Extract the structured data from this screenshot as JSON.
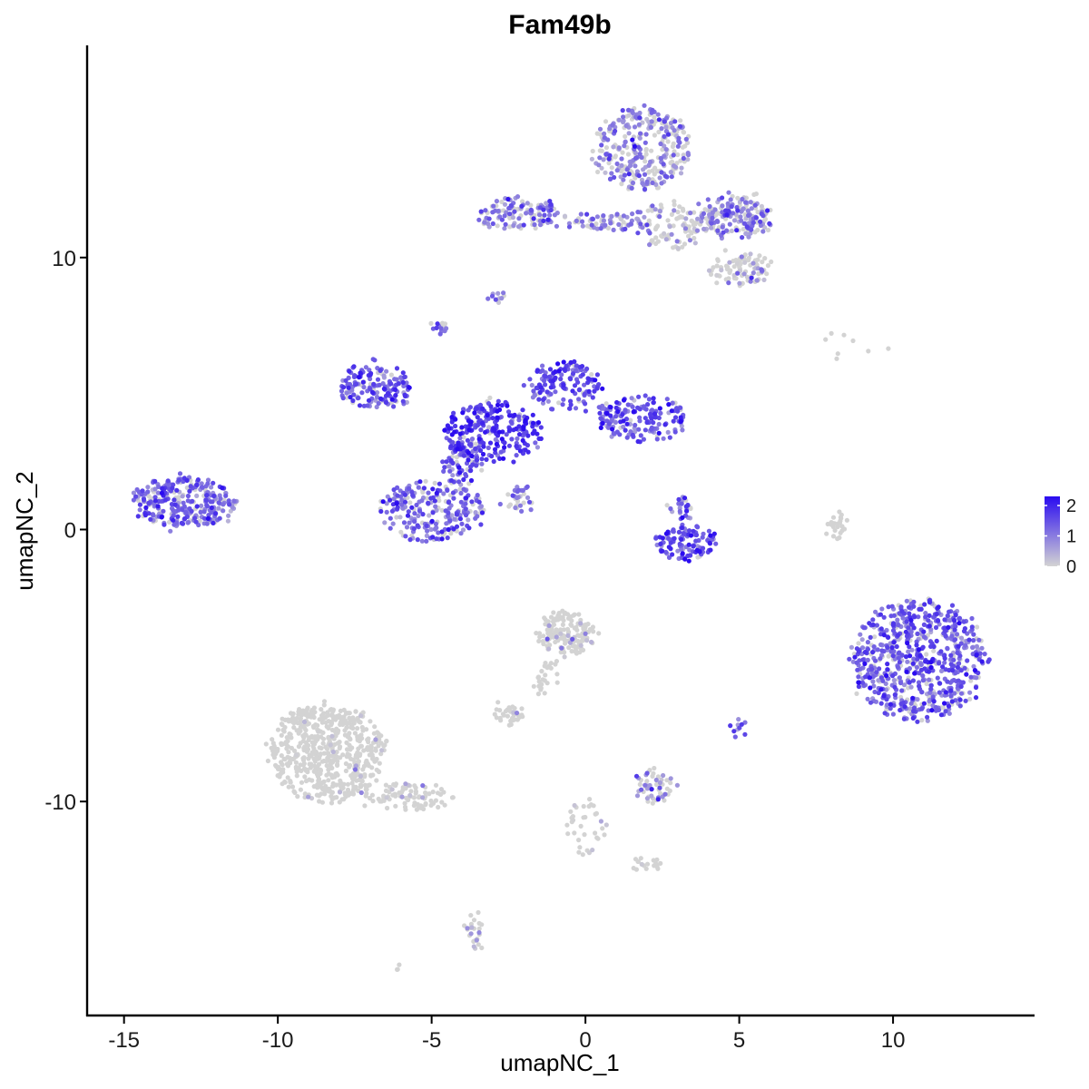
{
  "chart_data": {
    "type": "scatter",
    "title": "Fam49b",
    "xlabel": "umapNC_1",
    "ylabel": "umapNC_2",
    "xlim": [
      -16.2,
      14.6
    ],
    "ylim": [
      -17.9,
      17.8
    ],
    "x_ticks": [
      {
        "value": -15,
        "label": "-15"
      },
      {
        "value": -10,
        "label": "-10"
      },
      {
        "value": -5,
        "label": "-5"
      },
      {
        "value": 0,
        "label": "0"
      },
      {
        "value": 5,
        "label": "5"
      },
      {
        "value": 10,
        "label": "10"
      }
    ],
    "y_ticks": [
      {
        "value": 10,
        "label": "10"
      },
      {
        "value": 0,
        "label": "0"
      },
      {
        "value": -10,
        "label": "-10"
      }
    ],
    "grid": false,
    "legend": {
      "position": "right",
      "type": "colorbar",
      "min": 0,
      "max": 2.3,
      "low_color": "#d3d3d3",
      "high_color": "#2a0bf0",
      "ticks": [
        {
          "value": 0,
          "label": "0"
        },
        {
          "value": 1,
          "label": "1"
        },
        {
          "value": 2,
          "label": "2"
        }
      ]
    },
    "clusters": [
      {
        "name": "top-right upper lobe",
        "cx": 1.8,
        "cy": 14.0,
        "rx": 1.6,
        "ry": 1.5,
        "n": 320,
        "mean_expr": 0.9
      },
      {
        "name": "top-right right lobe",
        "cx": 5.0,
        "cy": 11.5,
        "rx": 1.1,
        "ry": 0.8,
        "n": 160,
        "mean_expr": 1.0
      },
      {
        "name": "top-right lower tail",
        "cx": 5.0,
        "cy": 9.6,
        "rx": 1.0,
        "ry": 0.6,
        "n": 90,
        "mean_expr": 0.5
      },
      {
        "name": "top bridge left",
        "cx": -2.2,
        "cy": 11.6,
        "rx": 1.3,
        "ry": 0.6,
        "n": 120,
        "mean_expr": 1.1
      },
      {
        "name": "top bridge middle",
        "cx": 0.7,
        "cy": 11.3,
        "rx": 1.6,
        "ry": 0.35,
        "n": 70,
        "mean_expr": 0.9
      },
      {
        "name": "top bridge right",
        "cx": 3.0,
        "cy": 11.2,
        "rx": 1.4,
        "ry": 0.9,
        "n": 110,
        "mean_expr": 0.7
      },
      {
        "name": "small dot A",
        "cx": -2.9,
        "cy": 8.6,
        "rx": 0.25,
        "ry": 0.25,
        "n": 10,
        "mean_expr": 1.0
      },
      {
        "name": "small dot B",
        "cx": -4.7,
        "cy": 7.4,
        "rx": 0.25,
        "ry": 0.25,
        "n": 14,
        "mean_expr": 1.2
      },
      {
        "name": "center left arm",
        "cx": -6.8,
        "cy": 5.3,
        "rx": 1.2,
        "ry": 0.8,
        "n": 150,
        "mean_expr": 1.3
      },
      {
        "name": "center hub",
        "cx": -3.0,
        "cy": 3.6,
        "rx": 1.6,
        "ry": 1.1,
        "n": 250,
        "mean_expr": 1.7
      },
      {
        "name": "center upper arm",
        "cx": -0.7,
        "cy": 5.3,
        "rx": 1.2,
        "ry": 0.9,
        "n": 140,
        "mean_expr": 1.5
      },
      {
        "name": "center right arm",
        "cx": 1.8,
        "cy": 4.1,
        "rx": 1.5,
        "ry": 0.8,
        "n": 170,
        "mean_expr": 1.4
      },
      {
        "name": "center lower lobe",
        "cx": -5.0,
        "cy": 0.7,
        "rx": 1.7,
        "ry": 1.1,
        "n": 240,
        "mean_expr": 1.2
      },
      {
        "name": "center lower stalk",
        "cx": -4.0,
        "cy": 2.5,
        "rx": 0.7,
        "ry": 0.9,
        "n": 80,
        "mean_expr": 1.3
      },
      {
        "name": "diagonal streak",
        "cx": -2.2,
        "cy": 1.1,
        "rx": 0.5,
        "ry": 0.5,
        "n": 30,
        "mean_expr": 1.0
      },
      {
        "name": "far left cluster",
        "cx": -13.0,
        "cy": 1.0,
        "rx": 1.7,
        "ry": 0.9,
        "n": 300,
        "mean_expr": 1.2
      },
      {
        "name": "crescent",
        "cx": 3.3,
        "cy": -0.5,
        "rx": 1.0,
        "ry": 0.6,
        "n": 110,
        "mean_expr": 1.5
      },
      {
        "name": "crescent top",
        "cx": 3.2,
        "cy": 0.8,
        "rx": 0.35,
        "ry": 0.4,
        "n": 25,
        "mean_expr": 1.3
      },
      {
        "name": "thin strand right",
        "cx": 8.2,
        "cy": 0.2,
        "rx": 0.3,
        "ry": 0.6,
        "n": 25,
        "mean_expr": 0.3
      },
      {
        "name": "far right cluster",
        "cx": 10.8,
        "cy": -4.8,
        "rx": 2.2,
        "ry": 2.2,
        "n": 700,
        "mean_expr": 1.3
      },
      {
        "name": "small right dots",
        "cx": 8.7,
        "cy": 6.7,
        "rx": 1.3,
        "ry": 0.5,
        "n": 8,
        "mean_expr": 0.0
      },
      {
        "name": "bottom left large",
        "cx": -8.4,
        "cy": -8.2,
        "rx": 1.9,
        "ry": 1.8,
        "n": 600,
        "mean_expr": 0.05
      },
      {
        "name": "bottom left tail",
        "cx": -5.7,
        "cy": -9.8,
        "rx": 1.6,
        "ry": 0.5,
        "n": 90,
        "mean_expr": 0.15
      },
      {
        "name": "bottom center upper",
        "cx": -0.6,
        "cy": -3.8,
        "rx": 0.9,
        "ry": 0.8,
        "n": 160,
        "mean_expr": 0.2
      },
      {
        "name": "bottom center streak",
        "cx": -1.2,
        "cy": -5.5,
        "rx": 0.4,
        "ry": 0.7,
        "n": 25,
        "mean_expr": 0.1
      },
      {
        "name": "bottom small blob",
        "cx": -2.5,
        "cy": -6.8,
        "rx": 0.5,
        "ry": 0.3,
        "n": 35,
        "mean_expr": 0.1
      },
      {
        "name": "bottom right blob",
        "cx": 2.3,
        "cy": -9.4,
        "rx": 0.7,
        "ry": 0.6,
        "n": 55,
        "mean_expr": 0.8
      },
      {
        "name": "bottom right dots",
        "cx": 5.0,
        "cy": -7.3,
        "rx": 0.3,
        "ry": 0.3,
        "n": 10,
        "mean_expr": 1.4
      },
      {
        "name": "bottom center thin",
        "cx": 0.0,
        "cy": -11.0,
        "rx": 0.6,
        "ry": 1.0,
        "n": 35,
        "mean_expr": 0.2
      },
      {
        "name": "bottom right thin",
        "cx": 2.0,
        "cy": -12.3,
        "rx": 0.6,
        "ry": 0.3,
        "n": 20,
        "mean_expr": 0.1
      },
      {
        "name": "bottom low strand",
        "cx": -3.6,
        "cy": -14.8,
        "rx": 0.3,
        "ry": 0.6,
        "n": 25,
        "mean_expr": 0.4
      },
      {
        "name": "bottom tiny",
        "cx": -6.1,
        "cy": -16.1,
        "rx": 0.1,
        "ry": 0.1,
        "n": 3,
        "mean_expr": 0.8
      }
    ]
  }
}
